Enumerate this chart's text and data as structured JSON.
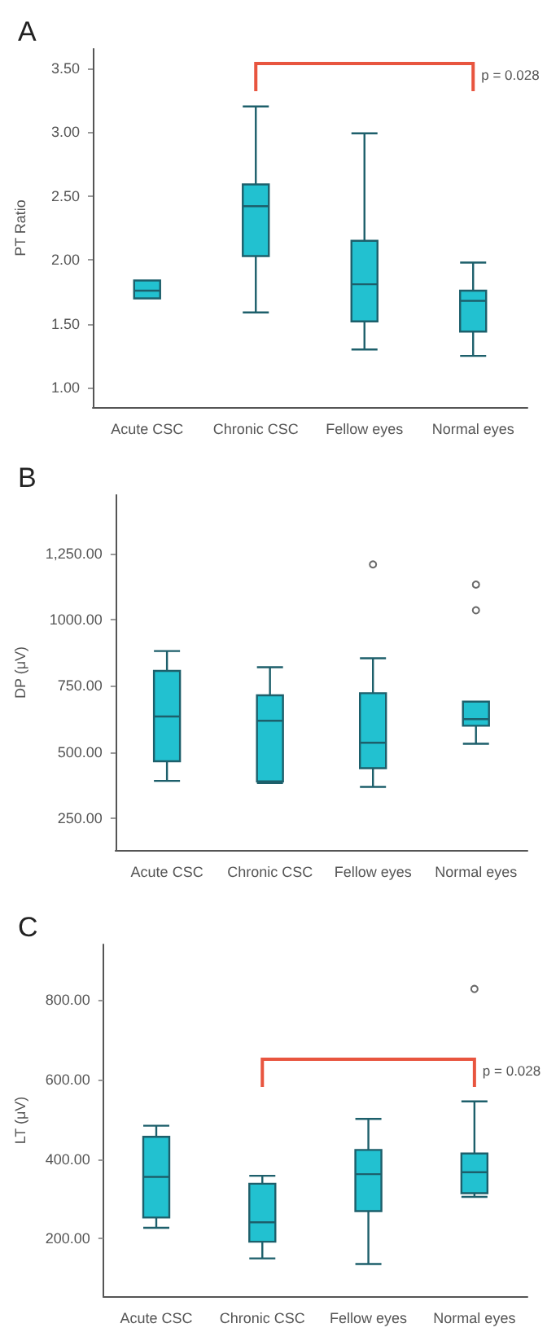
{
  "chart_data": [
    {
      "type": "box",
      "title": "A",
      "ylabel": "PT Ratio",
      "categories": [
        "Acute CSC",
        "Chronic CSC",
        "Fellow eyes",
        "Normal eyes"
      ],
      "color": "#22c1d0",
      "ylim": [
        0.85,
        3.65
      ],
      "yticks": [
        {
          "value": 1,
          "label": "1.00"
        },
        {
          "value": 1.5,
          "label": "1.50"
        },
        {
          "value": 2,
          "label": "2.00"
        },
        {
          "value": 2.5,
          "label": "2.50"
        },
        {
          "value": 3,
          "label": "3.00"
        },
        {
          "value": 3.5,
          "label": "3.50"
        }
      ],
      "grid": false,
      "annotations": [
        "p = 0.028"
      ],
      "boxes": [
        {
          "low": 1.7,
          "q1": 1.7,
          "median": 1.76,
          "q3": 1.84,
          "high": 1.84
        },
        {
          "low": 1.59,
          "q1": 2.03,
          "median": 2.42,
          "q3": 2.59,
          "high": 3.2
        },
        {
          "low": 1.3,
          "q1": 1.52,
          "median": 1.81,
          "q3": 2.15,
          "high": 2.99
        },
        {
          "low": 1.25,
          "q1": 1.44,
          "median": 1.68,
          "q3": 1.76,
          "high": 1.98
        }
      ]
    },
    {
      "type": "box",
      "title": "B",
      "ylabel": "DP (μV)",
      "categories": [
        "Acute CSC",
        "Chronic CSC",
        "Fellow eyes",
        "Normal eyes"
      ],
      "color": "#22c1d0",
      "ylim": [
        130,
        1470
      ],
      "yticks": [
        {
          "value": 250,
          "label": "250.00"
        },
        {
          "value": 500,
          "label": "500.00"
        },
        {
          "value": 750,
          "label": "750.00"
        },
        {
          "value": 1000,
          "label": "1000.00"
        },
        {
          "value": 1250,
          "label": "1,250.00"
        }
      ],
      "grid": false,
      "boxes": [
        {
          "low": 391,
          "q1": 465,
          "median": 634,
          "q3": 806,
          "high": 881
        },
        {
          "low": 383,
          "q1": 389,
          "median": 618,
          "q3": 714,
          "high": 820
        },
        {
          "low": 368,
          "q1": 439,
          "median": 535,
          "q3": 722,
          "high": 854,
          "outliers": [
            1208
          ]
        },
        {
          "low": 531,
          "q1": 599,
          "median": 624,
          "q3": 690,
          "high": 690,
          "outliers": [
            1132,
            1035
          ]
        }
      ]
    },
    {
      "type": "box",
      "title": "C",
      "ylabel": "LT (μV)",
      "categories": [
        "Acute CSC",
        "Chronic CSC",
        "Fellow eyes",
        "Normal eyes"
      ],
      "color": "#22c1d0",
      "ylim": [
        55,
        940
      ],
      "yticks": [
        {
          "value": 200,
          "label": "200.00"
        },
        {
          "value": 400,
          "label": "400.00"
        },
        {
          "value": 600,
          "label": "600.00"
        },
        {
          "value": 800,
          "label": "800.00"
        }
      ],
      "grid": false,
      "annotations": [
        "p = 0.028"
      ],
      "boxes": [
        {
          "low": 227,
          "q1": 253,
          "median": 355,
          "q3": 456,
          "high": 484
        },
        {
          "low": 150,
          "q1": 192,
          "median": 241,
          "q3": 338,
          "high": 358
        },
        {
          "low": 136,
          "q1": 269,
          "median": 362,
          "q3": 423,
          "high": 501
        },
        {
          "low": 305,
          "q1": 314,
          "median": 367,
          "q3": 414,
          "high": 545,
          "outliers": [
            828
          ]
        }
      ]
    }
  ]
}
